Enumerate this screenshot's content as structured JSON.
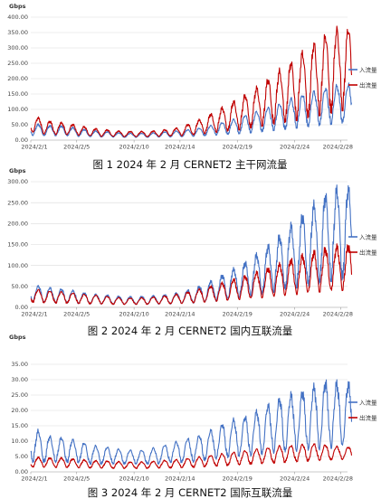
{
  "chart_data": [
    {
      "type": "line",
      "title": "图 1  2024 年 2 月 CERNET2 主干网流量",
      "ylabel": "Gbps",
      "ylim": [
        0,
        400
      ],
      "yticks": [
        "0.00",
        "50.00",
        "100.00",
        "150.00",
        "200.00",
        "250.00",
        "300.00",
        "350.00",
        "400.00"
      ],
      "xticks": [
        "2024/2/1",
        "2024/2/5",
        "2024/2/10",
        "2024/2/14",
        "2024/2/19",
        "2024/2/24",
        "2024/2/28"
      ],
      "legend_position": "right",
      "grid": true,
      "series": [
        {
          "name": "入流量",
          "color": "#4472c4",
          "daily_peak": [
            55,
            48,
            45,
            45,
            38,
            32,
            28,
            26,
            22,
            22,
            22,
            24,
            28,
            30,
            35,
            40,
            50,
            60,
            70,
            85,
            95,
            110,
            120,
            140,
            150,
            160,
            170,
            178
          ],
          "daily_trough": [
            15,
            14,
            14,
            14,
            12,
            11,
            10,
            10,
            9,
            9,
            9,
            10,
            10,
            11,
            12,
            14,
            16,
            18,
            20,
            23,
            26,
            30,
            34,
            38,
            42,
            46,
            50,
            55
          ]
        },
        {
          "name": "出流量",
          "color": "#c00000",
          "daily_peak": [
            85,
            65,
            58,
            55,
            48,
            40,
            35,
            32,
            28,
            28,
            28,
            30,
            35,
            40,
            55,
            70,
            90,
            110,
            130,
            150,
            175,
            205,
            230,
            260,
            290,
            320,
            345,
            360
          ],
          "daily_trough": [
            25,
            20,
            18,
            18,
            16,
            14,
            12,
            12,
            11,
            11,
            11,
            12,
            13,
            14,
            16,
            20,
            24,
            28,
            32,
            38,
            44,
            50,
            56,
            62,
            70,
            78,
            85,
            95
          ]
        }
      ]
    },
    {
      "type": "line",
      "title": "图 2  2024 年 2 月 CERNET2 国内互联流量",
      "ylabel": "Gbps",
      "ylim": [
        0,
        300
      ],
      "yticks": [
        "0.00",
        "50.00",
        "100.00",
        "150.00",
        "200.00",
        "250.00",
        "300.00"
      ],
      "xticks": [
        "2024/2/1",
        "2024/2/5",
        "2024/2/10",
        "2024/2/14",
        "2024/2/19",
        "2024/2/24",
        "2024/2/28"
      ],
      "legend_position": "right",
      "grid": true,
      "series": [
        {
          "name": "入流量",
          "color": "#4472c4",
          "daily_peak": [
            55,
            48,
            45,
            42,
            38,
            32,
            30,
            28,
            25,
            25,
            26,
            28,
            30,
            35,
            42,
            52,
            65,
            80,
            95,
            110,
            130,
            150,
            175,
            200,
            225,
            250,
            270,
            280
          ],
          "daily_trough": [
            12,
            11,
            10,
            10,
            9,
            8,
            8,
            7,
            7,
            7,
            7,
            8,
            8,
            9,
            10,
            12,
            15,
            18,
            22,
            26,
            30,
            35,
            40,
            45,
            50,
            55,
            60,
            65
          ]
        },
        {
          "name": "出流量",
          "color": "#c00000",
          "daily_peak": [
            45,
            40,
            38,
            36,
            33,
            30,
            28,
            25,
            22,
            22,
            23,
            25,
            28,
            32,
            38,
            45,
            52,
            60,
            68,
            76,
            85,
            95,
            105,
            115,
            125,
            132,
            140,
            145
          ],
          "daily_trough": [
            12,
            11,
            10,
            10,
            9,
            8,
            8,
            7,
            7,
            7,
            7,
            8,
            8,
            9,
            10,
            12,
            14,
            16,
            18,
            20,
            22,
            25,
            28,
            30,
            33,
            36,
            38,
            40
          ]
        }
      ]
    },
    {
      "type": "line",
      "title": "图 3  2024 年 2 月 CERNET2 国际互联流量",
      "ylabel": "Gbps",
      "ylim": [
        0,
        35
      ],
      "yticks": [
        "0.00",
        "5.00",
        "10.00",
        "15.00",
        "20.00",
        "25.00",
        "30.00",
        "35.00"
      ],
      "xticks": [
        "2024/2/1",
        "2024/2/5",
        "2024/2/10",
        "2024/2/14",
        "2024/2/19",
        "2024/2/24",
        "2024/2/28"
      ],
      "legend_position": "right",
      "grid": true,
      "series": [
        {
          "name": "入流量",
          "color": "#4472c4",
          "daily_peak": [
            15,
            12,
            11,
            11,
            10,
            9,
            8,
            8,
            7,
            7,
            7,
            8,
            9,
            10,
            11,
            12,
            14,
            16,
            17,
            18,
            20,
            22,
            24,
            25,
            26,
            28,
            29,
            28
          ],
          "daily_trough": [
            3,
            3,
            3,
            3,
            3,
            2.5,
            2.5,
            2.5,
            2.5,
            2.5,
            2.5,
            2.5,
            3,
            3,
            3,
            3.5,
            4,
            4.5,
            5,
            5,
            5.5,
            6,
            6,
            6.5,
            7,
            7,
            7.5,
            8
          ]
        },
        {
          "name": "出流量",
          "color": "#c00000",
          "daily_peak": [
            5,
            4.5,
            4.5,
            4.5,
            4,
            3.8,
            3.5,
            3.5,
            3.2,
            3.2,
            3.2,
            3.5,
            3.8,
            4,
            4.5,
            5,
            5.5,
            6,
            6.5,
            7,
            7.5,
            8,
            8.5,
            8.5,
            9,
            9,
            8.5,
            8
          ],
          "daily_trough": [
            1.5,
            1.5,
            1.4,
            1.4,
            1.3,
            1.2,
            1.2,
            1.1,
            1.1,
            1.1,
            1.1,
            1.2,
            1.2,
            1.3,
            1.4,
            1.6,
            1.8,
            2,
            2.2,
            2.4,
            2.6,
            2.8,
            3,
            3.2,
            3.4,
            3.6,
            3.8,
            4
          ]
        }
      ]
    }
  ]
}
